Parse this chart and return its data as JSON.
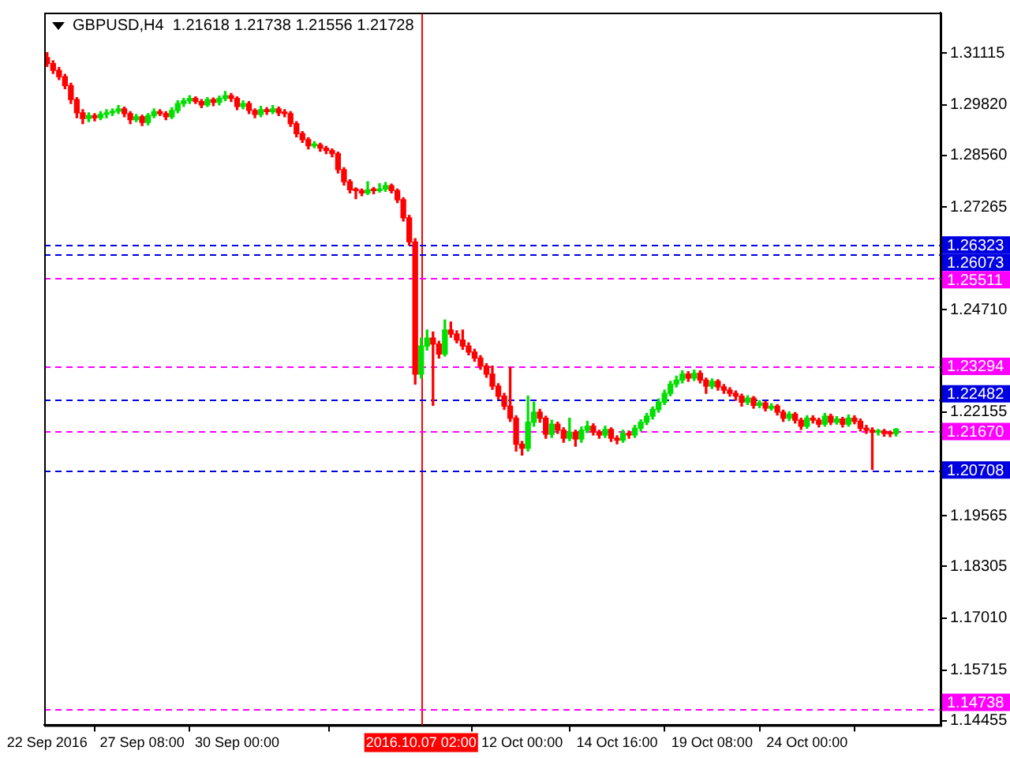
{
  "chart_data": {
    "type": "candlestick",
    "title": "GBPUSD,H4  1.21618 1.21738 1.21556 1.21728",
    "categories": [
      "22 Sep 2016",
      null,
      null,
      null,
      null,
      null,
      null,
      null,
      null,
      null,
      null,
      null,
      null,
      null,
      null,
      null,
      "27 Sep 08:00",
      null,
      null,
      null,
      null,
      null,
      null,
      null,
      null,
      null,
      null,
      null,
      null,
      null,
      null,
      null,
      "30 Sep 00:00",
      null,
      null,
      null,
      null,
      null,
      null,
      null,
      null,
      null,
      null,
      null,
      null,
      null,
      null,
      null,
      null,
      null,
      null,
      null,
      null,
      null,
      null,
      null,
      null,
      null,
      null,
      null,
      null,
      null,
      null,
      "2016.10.07 02:00",
      null,
      null,
      null,
      null,
      null,
      null,
      null,
      null,
      null,
      null,
      null,
      null,
      null,
      null,
      null,
      null,
      "12 Oct 00:00",
      null,
      null,
      null,
      null,
      null,
      null,
      null,
      null,
      null,
      null,
      null,
      null,
      null,
      null,
      null,
      "14 Oct 16:00",
      null,
      null,
      null,
      null,
      null,
      null,
      null,
      null,
      null,
      null,
      null,
      null,
      null,
      null,
      null,
      "19 Oct 08:00",
      null,
      null,
      null,
      null,
      null,
      null,
      null,
      null,
      null,
      null,
      null,
      null,
      null,
      null,
      null,
      "24 Oct 00:00",
      null,
      null,
      null,
      null,
      null,
      null,
      null,
      null,
      null,
      null,
      null,
      null,
      null,
      null,
      null,
      null,
      null,
      null,
      null,
      null,
      null,
      null
    ],
    "ohlc": [
      [
        1.31,
        1.3112,
        1.3078,
        1.3085
      ],
      [
        1.3085,
        1.3092,
        1.306,
        1.3068
      ],
      [
        1.3068,
        1.3075,
        1.3045,
        1.3052
      ],
      [
        1.3052,
        1.3058,
        1.3022,
        1.303
      ],
      [
        1.303,
        1.3036,
        1.2985,
        1.2995
      ],
      [
        1.2995,
        1.3,
        1.295,
        1.2962
      ],
      [
        1.2962,
        1.297,
        1.2935,
        1.2948
      ],
      [
        1.2948,
        1.2962,
        1.294,
        1.2955
      ],
      [
        1.2955,
        1.296,
        1.2942,
        1.295
      ],
      [
        1.295,
        1.2965,
        1.2945,
        1.2958
      ],
      [
        1.2958,
        1.297,
        1.295,
        1.2962
      ],
      [
        1.2962,
        1.2972,
        1.2955,
        1.2966
      ],
      [
        1.2966,
        1.298,
        1.296,
        1.2972
      ],
      [
        1.2972,
        1.2976,
        1.2952,
        1.296
      ],
      [
        1.296,
        1.2965,
        1.2935,
        1.2945
      ],
      [
        1.2945,
        1.2958,
        1.294,
        1.2952
      ],
      [
        1.2952,
        1.2956,
        1.293,
        1.2938
      ],
      [
        1.2938,
        1.296,
        1.2932,
        1.2955
      ],
      [
        1.2955,
        1.2972,
        1.295,
        1.2965
      ],
      [
        1.2965,
        1.297,
        1.2955,
        1.296
      ],
      [
        1.296,
        1.2965,
        1.2945,
        1.2952
      ],
      [
        1.2952,
        1.2975,
        1.2948,
        1.2968
      ],
      [
        1.2968,
        1.2992,
        1.2962,
        1.2985
      ],
      [
        1.2985,
        1.2998,
        1.2978,
        1.2992
      ],
      [
        1.2992,
        1.3005,
        1.2985,
        1.2998
      ],
      [
        1.2998,
        1.3002,
        1.2985,
        1.299
      ],
      [
        1.299,
        1.2995,
        1.2975,
        1.2982
      ],
      [
        1.2982,
        1.3,
        1.2978,
        1.2995
      ],
      [
        1.2995,
        1.2999,
        1.298,
        1.2988
      ],
      [
        1.2988,
        1.3004,
        1.2982,
        1.2998
      ],
      [
        1.2998,
        1.3015,
        1.2992,
        1.3005
      ],
      [
        1.3005,
        1.301,
        1.299,
        1.2998
      ],
      [
        1.2998,
        1.3002,
        1.297,
        1.2978
      ],
      [
        1.2978,
        1.2992,
        1.2972,
        1.2985
      ],
      [
        1.2985,
        1.299,
        1.296,
        1.2968
      ],
      [
        1.2968,
        1.2972,
        1.295,
        1.2958
      ],
      [
        1.2958,
        1.2978,
        1.2952,
        1.297
      ],
      [
        1.297,
        1.2975,
        1.2958,
        1.2965
      ],
      [
        1.2965,
        1.298,
        1.296,
        1.2972
      ],
      [
        1.2972,
        1.2976,
        1.2955,
        1.2962
      ],
      [
        1.2962,
        1.297,
        1.2952,
        1.296
      ],
      [
        1.296,
        1.2965,
        1.2928,
        1.2935
      ],
      [
        1.2935,
        1.294,
        1.2902,
        1.291
      ],
      [
        1.291,
        1.2915,
        1.2888,
        1.2895
      ],
      [
        1.2895,
        1.29,
        1.2872,
        1.288
      ],
      [
        1.288,
        1.289,
        1.2875,
        1.2882
      ],
      [
        1.2882,
        1.2886,
        1.2866,
        1.2874
      ],
      [
        1.2874,
        1.2878,
        1.286,
        1.2868
      ],
      [
        1.2868,
        1.2872,
        1.2852,
        1.286
      ],
      [
        1.286,
        1.2864,
        1.2812,
        1.282
      ],
      [
        1.282,
        1.2825,
        1.2782,
        1.279
      ],
      [
        1.279,
        1.2795,
        1.2762,
        1.277
      ],
      [
        1.277,
        1.2775,
        1.2748,
        1.2768
      ],
      [
        1.2768,
        1.2772,
        1.2755,
        1.2762
      ],
      [
        1.2762,
        1.279,
        1.2758,
        1.277
      ],
      [
        1.277,
        1.2776,
        1.276,
        1.2768
      ],
      [
        1.2768,
        1.2785,
        1.2764,
        1.2772
      ],
      [
        1.2772,
        1.2788,
        1.2766,
        1.278
      ],
      [
        1.278,
        1.2784,
        1.2762,
        1.2768
      ],
      [
        1.2768,
        1.2772,
        1.2738,
        1.2745
      ],
      [
        1.2745,
        1.275,
        1.2692,
        1.27
      ],
      [
        1.27,
        1.2706,
        1.2632,
        1.264
      ],
      [
        1.264,
        1.2648,
        1.2285,
        1.231
      ],
      [
        1.231,
        1.24,
        1.23,
        1.238
      ],
      [
        1.238,
        1.242,
        1.237,
        1.24
      ],
      [
        1.24,
        1.2415,
        1.2232,
        1.2385
      ],
      [
        1.2385,
        1.2392,
        1.235,
        1.236
      ],
      [
        1.236,
        1.2445,
        1.2355,
        1.242
      ],
      [
        1.242,
        1.244,
        1.2402,
        1.241
      ],
      [
        1.241,
        1.2418,
        1.2388,
        1.2395
      ],
      [
        1.2395,
        1.242,
        1.2372,
        1.238
      ],
      [
        1.238,
        1.2388,
        1.2358,
        1.2365
      ],
      [
        1.2365,
        1.2372,
        1.2342,
        1.235
      ],
      [
        1.235,
        1.2356,
        1.2322,
        1.233
      ],
      [
        1.233,
        1.2336,
        1.2302,
        1.231
      ],
      [
        1.231,
        1.233,
        1.2272,
        1.228
      ],
      [
        1.228,
        1.2286,
        1.2248,
        1.2255
      ],
      [
        1.2255,
        1.2262,
        1.2222,
        1.223
      ],
      [
        1.223,
        1.2326,
        1.2192,
        1.22
      ],
      [
        1.22,
        1.2206,
        1.2118,
        1.2135
      ],
      [
        1.2135,
        1.2142,
        1.2108,
        1.2125
      ],
      [
        1.2125,
        1.2255,
        1.2118,
        1.219
      ],
      [
        1.219,
        1.224,
        1.218,
        1.2215
      ],
      [
        1.2215,
        1.2222,
        1.219,
        1.22
      ],
      [
        1.22,
        1.2205,
        1.215,
        1.216
      ],
      [
        1.216,
        1.2195,
        1.2152,
        1.2185
      ],
      [
        1.2185,
        1.219,
        1.2162,
        1.217
      ],
      [
        1.217,
        1.2176,
        1.214,
        1.215
      ],
      [
        1.215,
        1.22,
        1.2144,
        1.2165
      ],
      [
        1.2165,
        1.217,
        1.213,
        1.2148
      ],
      [
        1.2148,
        1.2178,
        1.214,
        1.217
      ],
      [
        1.217,
        1.2192,
        1.2164,
        1.218
      ],
      [
        1.218,
        1.2186,
        1.2158,
        1.2165
      ],
      [
        1.2165,
        1.217,
        1.215,
        1.2158
      ],
      [
        1.2158,
        1.218,
        1.2152,
        1.2172
      ],
      [
        1.2172,
        1.2176,
        1.2142,
        1.215
      ],
      [
        1.215,
        1.2156,
        1.2136,
        1.2145
      ],
      [
        1.2145,
        1.217,
        1.214,
        1.2162
      ],
      [
        1.2162,
        1.2168,
        1.215,
        1.2158
      ],
      [
        1.2158,
        1.2182,
        1.2152,
        1.2175
      ],
      [
        1.2175,
        1.2196,
        1.2168,
        1.219
      ],
      [
        1.219,
        1.2212,
        1.2184,
        1.2205
      ],
      [
        1.2205,
        1.2228,
        1.2198,
        1.2222
      ],
      [
        1.2222,
        1.2248,
        1.2215,
        1.224
      ],
      [
        1.224,
        1.227,
        1.2234,
        1.2262
      ],
      [
        1.2262,
        1.2292,
        1.2256,
        1.2285
      ],
      [
        1.2285,
        1.2305,
        1.2278,
        1.2295
      ],
      [
        1.2295,
        1.2318,
        1.2288,
        1.231
      ],
      [
        1.231,
        1.2316,
        1.2292,
        1.23
      ],
      [
        1.23,
        1.232,
        1.2294,
        1.2312
      ],
      [
        1.2312,
        1.2318,
        1.2288,
        1.2295
      ],
      [
        1.2295,
        1.23,
        1.2262,
        1.228
      ],
      [
        1.228,
        1.2298,
        1.2274,
        1.2292
      ],
      [
        1.2292,
        1.2296,
        1.227,
        1.2278
      ],
      [
        1.2278,
        1.2284,
        1.2262,
        1.227
      ],
      [
        1.227,
        1.2276,
        1.2255,
        1.2262
      ],
      [
        1.2262,
        1.2268,
        1.2245,
        1.2255
      ],
      [
        1.2255,
        1.226,
        1.223,
        1.224
      ],
      [
        1.224,
        1.2256,
        1.2234,
        1.225
      ],
      [
        1.225,
        1.2254,
        1.2225,
        1.2232
      ],
      [
        1.2232,
        1.2244,
        1.2226,
        1.2238
      ],
      [
        1.2238,
        1.2242,
        1.2218,
        1.2225
      ],
      [
        1.2225,
        1.2236,
        1.222,
        1.223
      ],
      [
        1.223,
        1.2234,
        1.2208,
        1.2215
      ],
      [
        1.2215,
        1.222,
        1.2192,
        1.22
      ],
      [
        1.22,
        1.2216,
        1.2194,
        1.221
      ],
      [
        1.221,
        1.2214,
        1.2188,
        1.2195
      ],
      [
        1.2195,
        1.22,
        1.2172,
        1.218
      ],
      [
        1.218,
        1.2206,
        1.2175,
        1.22
      ],
      [
        1.22,
        1.2206,
        1.2188,
        1.2195
      ],
      [
        1.2195,
        1.22,
        1.2178,
        1.2185
      ],
      [
        1.2185,
        1.2212,
        1.218,
        1.2205
      ],
      [
        1.2205,
        1.221,
        1.2184,
        1.219
      ],
      [
        1.219,
        1.2204,
        1.2185,
        1.2198
      ],
      [
        1.2198,
        1.2202,
        1.2178,
        1.2185
      ],
      [
        1.2185,
        1.2208,
        1.218,
        1.22
      ],
      [
        1.22,
        1.2206,
        1.2186,
        1.2192
      ],
      [
        1.2192,
        1.2198,
        1.2168,
        1.2175
      ],
      [
        1.2175,
        1.2182,
        1.2162,
        1.217
      ],
      [
        1.217,
        1.2176,
        1.2072,
        1.2165
      ],
      [
        1.2165,
        1.2172,
        1.2158,
        1.2168
      ],
      [
        1.2168,
        1.2172,
        1.2155,
        1.2162
      ],
      [
        1.2162,
        1.2168,
        1.2154,
        1.2161
      ],
      [
        1.21618,
        1.21738,
        1.21556,
        1.21728
      ],
      null,
      null,
      null,
      null,
      null,
      null,
      null
    ],
    "ylim": [
      1.1434,
      1.3212
    ],
    "yticks": [
      {
        "value": 1.31115,
        "label": "1.31115"
      },
      {
        "value": 1.2982,
        "label": "1.29820"
      },
      {
        "value": 1.2856,
        "label": "1.28560"
      },
      {
        "value": 1.27265,
        "label": "1.27265"
      },
      {
        "value": 1.2471,
        "label": "1.24710"
      },
      {
        "value": 1.22155,
        "label": "1.22155"
      },
      {
        "value": 1.19565,
        "label": "1.19565"
      },
      {
        "value": 1.18305,
        "label": "1.18305"
      },
      {
        "value": 1.1701,
        "label": "1.17010"
      },
      {
        "value": 1.15715,
        "label": "1.15715"
      },
      {
        "value": 1.14455,
        "label": "1.14455"
      }
    ],
    "ref_lines": [
      {
        "axis": "x",
        "value": "2016.10.07 02:00",
        "color": "#ff0000",
        "line_style": "solid"
      },
      {
        "axis": "y",
        "value": 1.26323,
        "label": "1.26323",
        "color": "#0000e0",
        "line_style": "dashed"
      },
      {
        "axis": "y",
        "value": 1.26073,
        "label": "1.26073",
        "color": "#0000e0",
        "line_style": "dashed"
      },
      {
        "axis": "y",
        "value": 1.25511,
        "label": "1.25511",
        "color": "#ff00ff",
        "line_style": "dashed"
      },
      {
        "axis": "y",
        "value": 1.23294,
        "label": "1.23294",
        "color": "#ff00ff",
        "line_style": "dashed"
      },
      {
        "axis": "y",
        "value": 1.22482,
        "label": "1.22482",
        "color": "#0000e0",
        "line_style": "dashed"
      },
      {
        "axis": "y",
        "value": 1.2167,
        "label": "1.21670",
        "color": "#ff00ff",
        "line_style": "dashed"
      },
      {
        "axis": "y",
        "value": 1.20708,
        "label": "1.20708",
        "color": "#0000e0",
        "line_style": "dashed"
      },
      {
        "axis": "y",
        "value": 1.14738,
        "label": "1.14738",
        "color": "#ff00ff",
        "line_style": "dashed"
      }
    ]
  }
}
